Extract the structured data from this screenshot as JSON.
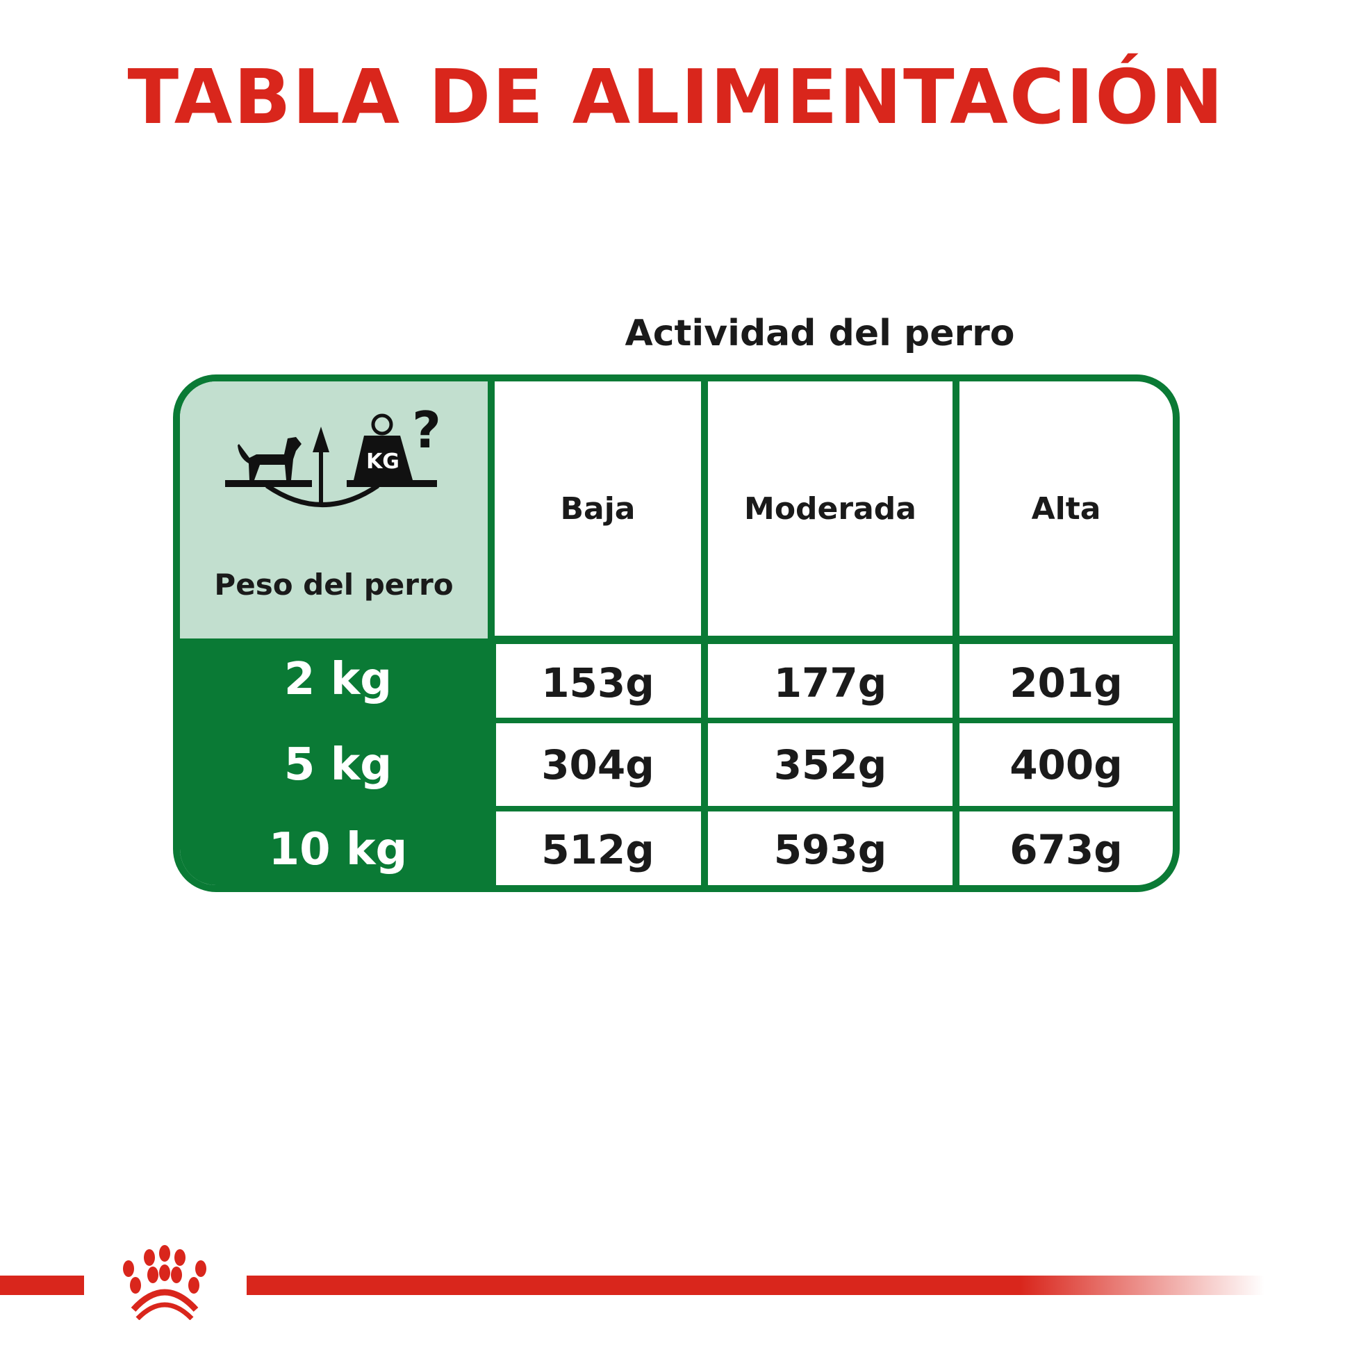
{
  "title": "TABLA DE ALIMENTACIÓN",
  "activity_heading": "Actividad del perro",
  "weight_heading": "Peso del perro",
  "icon": "dog-weight-scale-icon",
  "icon_label": "KG",
  "columns": [
    "Baja",
    "Moderada",
    "Alta"
  ],
  "rows": [
    {
      "weight": "2 kg",
      "values": [
        "153g",
        "177g",
        "201g"
      ]
    },
    {
      "weight": "5 kg",
      "values": [
        "304g",
        "352g",
        "400g"
      ]
    },
    {
      "weight": "10 kg",
      "values": [
        "512g",
        "593g",
        "673g"
      ]
    }
  ],
  "colors": {
    "title_red": "#d9261c",
    "table_green": "#0a7a35",
    "header_light_green": "#c2dfcf"
  },
  "logo": "royal-canin-crown-logo"
}
